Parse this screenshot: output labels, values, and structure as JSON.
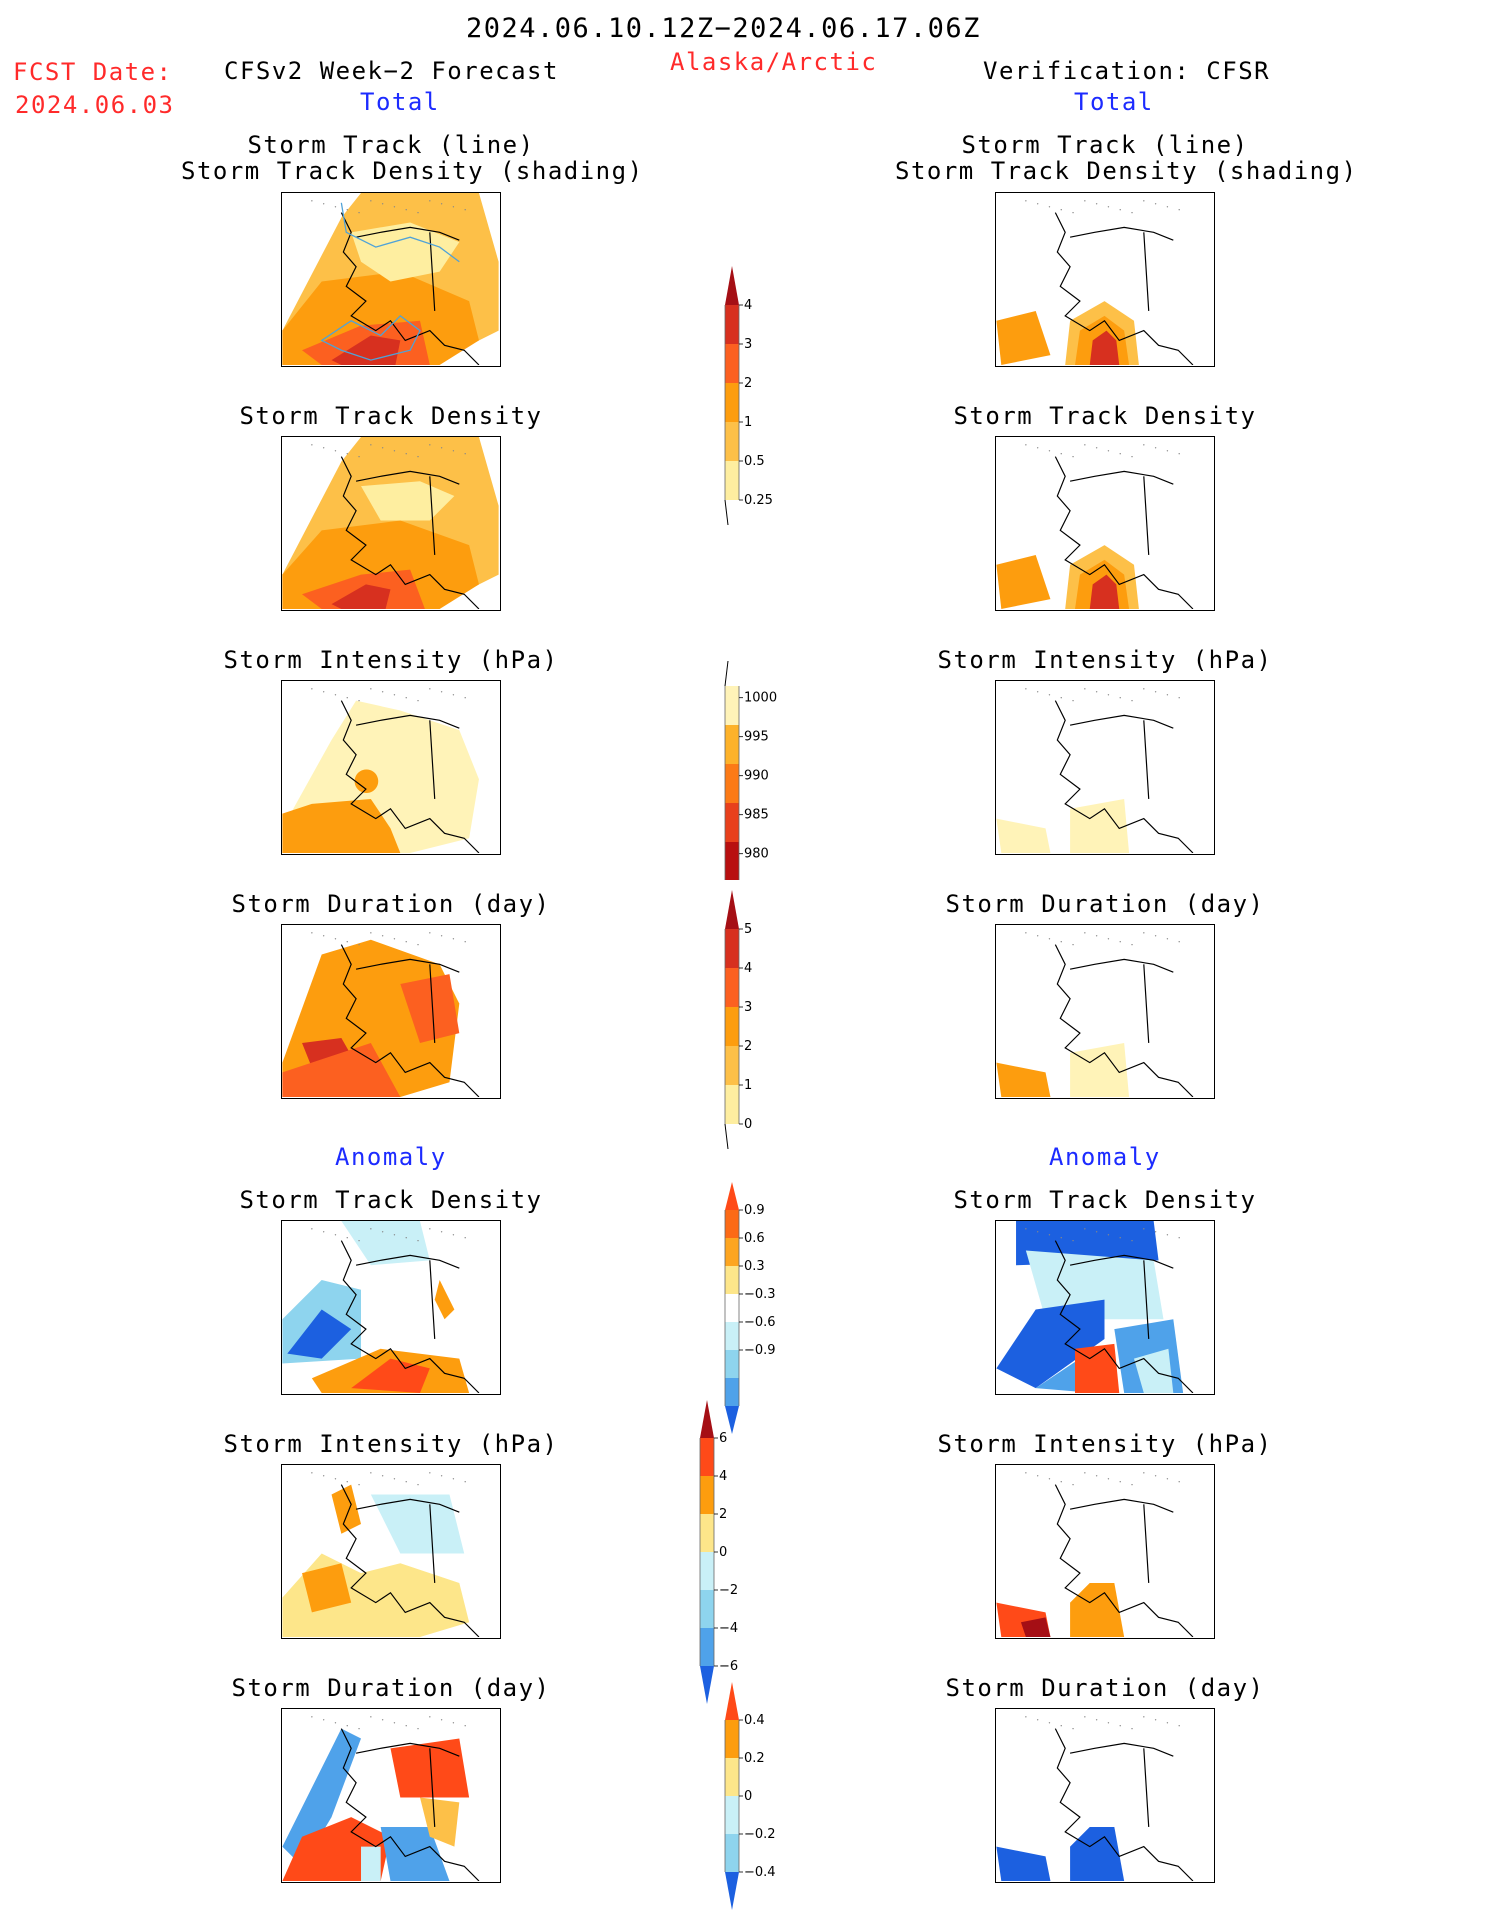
{
  "header": {
    "period": "2024.06.10.12Z−2024.06.17.06Z",
    "region": "Alaska/Arctic",
    "fcst_label": "FCST Date:",
    "fcst_date": "2024.06.03",
    "left_title": "CFSv2 Week−2 Forecast",
    "right_title": "Verification: CFSR",
    "total_label": "Total",
    "anomaly_label": "Anomaly"
  },
  "panels": {
    "track": "Storm Track (line)\nStorm Track Density (shading)",
    "density": "Storm Track Density",
    "intensity": "Storm Intensity (hPa)",
    "duration": "Storm Duration (day)"
  },
  "colorbars": {
    "density_total": {
      "labels": [
        "4",
        "3",
        "2",
        "1",
        "0.5",
        "0.25"
      ],
      "colors": [
        "#a50f15",
        "#d7301f",
        "#fc6020",
        "#fd9d0e",
        "#fdc048",
        "#feeea0"
      ]
    },
    "intensity_total": {
      "labels": [
        "1000",
        "995",
        "990",
        "985",
        "980"
      ],
      "colors": [
        "#fff3b8",
        "#fdb22a",
        "#fc7a16",
        "#e8401c",
        "#b80f10",
        "#800000"
      ]
    },
    "duration_total": {
      "labels": [
        "5",
        "4",
        "3",
        "2",
        "1",
        "0"
      ],
      "colors": [
        "#a50f15",
        "#d7301f",
        "#fc6020",
        "#fd9d0e",
        "#fdc048",
        "#feeea0"
      ]
    },
    "density_anom": {
      "labels": [
        "0.9",
        "0.6",
        "0.3",
        "−0.3",
        "−0.6",
        "−0.9"
      ],
      "colors": [
        "#ff4a18",
        "#fc6a16",
        "#fda520",
        "#fde68a",
        "#ffffff",
        "#c9f0f7",
        "#8ed4ee",
        "#4fa2ea",
        "#1c60e0"
      ]
    },
    "intensity_anom": {
      "labels": [
        "6",
        "4",
        "2",
        "0",
        "−2",
        "−4",
        "−6"
      ],
      "colors": [
        "#a50f15",
        "#ff4a18",
        "#fd9d0e",
        "#fde68a",
        "#c9f0f7",
        "#8ed4ee",
        "#4fa2ea",
        "#1c60e0"
      ]
    },
    "duration_anom": {
      "labels": [
        "0.4",
        "0.2",
        "0",
        "−0.2",
        "−0.4"
      ],
      "colors": [
        "#ff4a18",
        "#fd9d0e",
        "#fde68a",
        "#c9f0f7",
        "#8ed4ee",
        "#1c60e0"
      ]
    }
  }
}
